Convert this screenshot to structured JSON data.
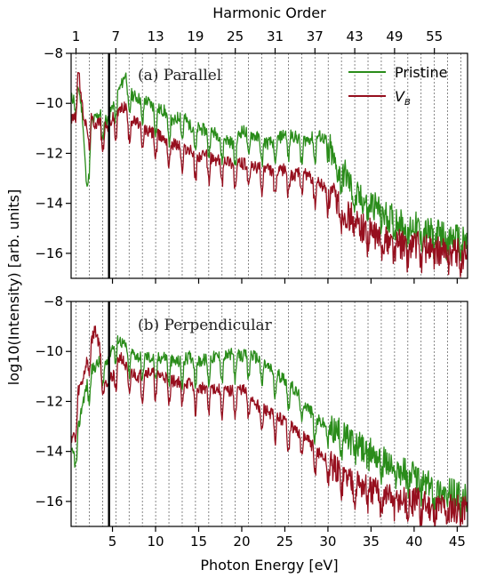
{
  "chart_data": {
    "type": "line",
    "xlabel": "Photon Energy [eV]",
    "ylabel": "log10(Intensity) [arb. units]",
    "top_xlabel": "Harmonic Order",
    "xlim": [
      0.2,
      46.2
    ],
    "ylim": [
      -17,
      -8
    ],
    "x_ticks": [
      5,
      10,
      15,
      20,
      25,
      30,
      35,
      40,
      45
    ],
    "x_tick_labels": [
      "5",
      "10",
      "15",
      "20",
      "25",
      "30",
      "35",
      "40",
      "45"
    ],
    "y_ticks": [
      -8,
      -10,
      -12,
      -14,
      -16
    ],
    "y_tick_labels": [
      "−8",
      "−10",
      "−12",
      "−14",
      "−16"
    ],
    "top_ticks": [
      1,
      7,
      13,
      19,
      25,
      31,
      37,
      43,
      49,
      55
    ],
    "top_tick_labels": [
      "1",
      "7",
      "13",
      "19",
      "25",
      "31",
      "37",
      "43",
      "49",
      "55"
    ],
    "fundamental_eV": 0.77,
    "harmonic_gridlines": "odd harmonics, dotted vertical lines",
    "bandgap_line_eV": 4.6,
    "legend_position": "top-right of panel (a)",
    "colors": {
      "pristine": "#2a8c1a",
      "vb": "#960f1e",
      "grid": "#555555",
      "bandgap": "#000000"
    },
    "panels": [
      {
        "label": "(a) Parallel",
        "series": [
          {
            "name": "Pristine",
            "color": "#2a8c1a",
            "x": [
              0.5,
              1.0,
              1.5,
              2.0,
              2.5,
              3.0,
              3.5,
              4.0,
              4.5,
              5.0,
              5.5,
              6.0,
              6.5,
              7.0,
              8.0,
              9.0,
              10.0,
              11.0,
              12.0,
              13.0,
              14.0,
              15.0,
              16.0,
              17.0,
              18.0,
              19.0,
              20.0,
              21.0,
              22.0,
              23.0,
              24.0,
              25.0,
              26.0,
              27.0,
              28.0,
              29.0,
              30.0,
              31.0,
              32.0,
              33.0,
              34.0,
              35.0,
              36.0,
              37.0,
              38.0,
              39.0,
              40.0,
              41.0,
              42.0,
              43.0,
              44.0,
              45.0,
              46.0
            ],
            "y": [
              -10.2,
              -9.6,
              -10.8,
              -13.8,
              -11.2,
              -11.0,
              -10.8,
              -11.0,
              -11.1,
              -10.5,
              -10.0,
              -9.7,
              -9.2,
              -10.0,
              -10.2,
              -10.3,
              -10.6,
              -10.7,
              -11.2,
              -10.8,
              -11.3,
              -11.4,
              -11.5,
              -11.6,
              -11.8,
              -12.0,
              -11.5,
              -11.6,
              -11.8,
              -12.0,
              -11.9,
              -11.6,
              -11.7,
              -11.9,
              -11.8,
              -11.7,
              -11.9,
              -13.1,
              -13.2,
              -14.0,
              -14.3,
              -14.4,
              -14.6,
              -15.0,
              -15.0,
              -15.4,
              -15.3,
              -15.5,
              -15.6,
              -15.6,
              -15.8,
              -15.8,
              -16.0
            ]
          },
          {
            "name": "V_B",
            "color": "#960f1e",
            "x": [
              0.5,
              1.0,
              1.5,
              2.0,
              2.5,
              3.0,
              3.5,
              4.0,
              4.5,
              5.0,
              5.5,
              6.0,
              6.5,
              7.0,
              8.0,
              9.0,
              10.0,
              11.0,
              12.0,
              13.0,
              14.0,
              15.0,
              16.0,
              17.0,
              18.0,
              19.0,
              20.0,
              21.0,
              22.0,
              23.0,
              24.0,
              25.0,
              26.0,
              27.0,
              28.0,
              29.0,
              30.0,
              31.0,
              32.0,
              33.0,
              34.0,
              35.0,
              36.0,
              37.0,
              38.0,
              39.0,
              40.0,
              41.0,
              42.0,
              43.0,
              44.0,
              45.0,
              46.0
            ],
            "y": [
              -11.0,
              -8.9,
              -10.6,
              -11.4,
              -11.0,
              -11.2,
              -11.1,
              -11.4,
              -11.3,
              -11.0,
              -10.8,
              -10.6,
              -10.5,
              -11.0,
              -11.2,
              -11.5,
              -11.6,
              -11.8,
              -12.0,
              -12.1,
              -12.3,
              -12.5,
              -12.5,
              -12.7,
              -12.6,
              -12.8,
              -12.8,
              -12.9,
              -13.0,
              -13.0,
              -13.2,
              -13.0,
              -13.3,
              -13.1,
              -13.4,
              -13.6,
              -13.9,
              -14.3,
              -14.8,
              -15.0,
              -15.4,
              -15.6,
              -15.8,
              -15.9,
              -16.0,
              -16.1,
              -16.0,
              -16.2,
              -16.2,
              -16.3,
              -16.3,
              -16.4,
              -16.5
            ]
          }
        ]
      },
      {
        "label": "(b) Perpendicular",
        "series": [
          {
            "name": "Pristine",
            "color": "#2a8c1a",
            "x": [
              0.5,
              1.0,
              1.5,
              2.0,
              2.5,
              3.0,
              3.5,
              4.0,
              4.5,
              5.0,
              5.5,
              6.0,
              6.5,
              7.0,
              8.0,
              9.0,
              10.0,
              11.0,
              12.0,
              13.0,
              14.0,
              15.0,
              16.0,
              17.0,
              18.0,
              19.0,
              20.0,
              21.0,
              22.0,
              23.0,
              24.0,
              25.0,
              26.0,
              27.0,
              28.0,
              29.0,
              30.0,
              31.0,
              32.0,
              33.0,
              34.0,
              35.0,
              36.0,
              37.0,
              38.0,
              39.0,
              40.0,
              41.0,
              42.0,
              43.0,
              44.0,
              45.0,
              46.0
            ],
            "y": [
              -14.5,
              -13.6,
              -12.5,
              -11.8,
              -11.2,
              -11.0,
              -10.8,
              -11.0,
              -10.6,
              -10.2,
              -9.8,
              -10.0,
              -10.2,
              -10.4,
              -10.6,
              -10.6,
              -10.7,
              -10.6,
              -10.8,
              -10.8,
              -10.6,
              -10.8,
              -10.7,
              -10.6,
              -10.6,
              -10.5,
              -10.6,
              -10.5,
              -10.7,
              -11.0,
              -11.3,
              -11.5,
              -11.9,
              -12.3,
              -12.8,
              -13.2,
              -13.4,
              -13.6,
              -13.8,
              -14.0,
              -14.3,
              -14.4,
              -14.6,
              -14.9,
              -15.1,
              -15.2,
              -15.4,
              -15.6,
              -15.8,
              -16.0,
              -16.0,
              -16.2,
              -16.3
            ]
          },
          {
            "name": "V_B",
            "color": "#960f1e",
            "x": [
              0.5,
              1.0,
              1.5,
              2.0,
              2.5,
              3.0,
              3.5,
              4.0,
              4.5,
              5.0,
              5.5,
              6.0,
              6.5,
              7.0,
              8.0,
              9.0,
              10.0,
              11.0,
              12.0,
              13.0,
              14.0,
              15.0,
              16.0,
              17.0,
              18.0,
              19.0,
              20.0,
              21.0,
              22.0,
              23.0,
              24.0,
              25.0,
              26.0,
              27.0,
              28.0,
              29.0,
              30.0,
              31.0,
              32.0,
              33.0,
              34.0,
              35.0,
              36.0,
              37.0,
              38.0,
              39.0,
              40.0,
              41.0,
              42.0,
              43.0,
              44.0,
              45.0,
              46.0
            ],
            "y": [
              -13.8,
              -12.0,
              -11.6,
              -10.8,
              -10.0,
              -9.5,
              -10.2,
              -11.5,
              -11.6,
              -11.4,
              -10.8,
              -10.6,
              -11.0,
              -11.2,
              -11.4,
              -11.2,
              -11.3,
              -11.4,
              -11.6,
              -11.6,
              -11.7,
              -11.9,
              -11.8,
              -11.9,
              -12.0,
              -12.0,
              -11.9,
              -12.2,
              -12.6,
              -12.8,
              -13.0,
              -13.2,
              -13.5,
              -13.7,
              -14.1,
              -14.5,
              -14.8,
              -15.2,
              -15.4,
              -15.6,
              -15.8,
              -16.0,
              -16.1,
              -16.2,
              -16.3,
              -16.4,
              -16.4,
              -16.5,
              -16.6,
              -16.6,
              -16.6,
              -16.7,
              -16.6
            ]
          }
        ]
      }
    ],
    "legend": [
      "Pristine",
      "V_B"
    ]
  }
}
